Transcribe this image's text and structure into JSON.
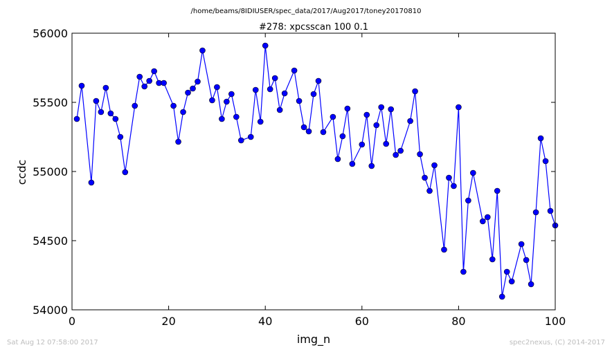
{
  "suptitle": "/home/beams/8IDIUSER/spec_data/2017/Aug2017/toney20170810",
  "footer_left": "Sat Aug 12 07:58:00 2017",
  "footer_right": "spec2nexus, (C) 2014-2017",
  "chart_data": {
    "type": "line",
    "title": "#278: xpcsscan 100 0.1",
    "xlabel": "img_n",
    "ylabel": "ccdc",
    "xlim": [
      0,
      100
    ],
    "ylim": [
      54000,
      56000
    ],
    "xticks": [
      0,
      20,
      40,
      60,
      80,
      100
    ],
    "yticks": [
      54000,
      54500,
      55000,
      55500,
      56000
    ],
    "grid": false,
    "line_color": "#0000ff",
    "marker_color": "#0000ff",
    "marker": "circle",
    "series": [
      {
        "x": [
          1,
          2,
          4,
          5,
          6,
          7,
          8,
          9,
          10,
          11,
          13,
          14,
          15,
          16,
          17,
          18,
          19,
          21,
          22,
          23,
          24,
          25,
          26,
          27,
          29,
          30,
          31,
          32,
          33,
          34,
          35,
          37,
          38,
          39,
          40,
          41,
          42,
          43,
          44,
          46,
          47,
          48,
          49,
          50,
          51,
          52,
          54,
          55,
          56,
          57,
          58,
          60,
          61,
          62,
          63,
          64,
          65,
          66,
          67,
          68,
          70,
          71,
          72,
          73,
          74,
          75,
          77,
          78,
          79,
          80,
          81,
          82,
          83,
          85,
          86,
          87,
          88,
          89,
          90,
          91,
          93,
          94,
          95,
          96,
          97,
          98,
          99,
          100
        ],
        "y": [
          55380,
          55620,
          54920,
          55510,
          55430,
          55605,
          55420,
          55380,
          55250,
          54995,
          55475,
          55685,
          55615,
          55655,
          55725,
          55640,
          55640,
          55475,
          55215,
          55430,
          55570,
          55600,
          55650,
          55875,
          55515,
          55610,
          55380,
          55505,
          55560,
          55395,
          55225,
          55250,
          55590,
          55360,
          55910,
          55595,
          55675,
          55445,
          55565,
          55730,
          55510,
          55320,
          55290,
          55560,
          55655,
          55285,
          55395,
          55090,
          55255,
          55455,
          55055,
          55195,
          55410,
          55040,
          55335,
          55465,
          55200,
          55450,
          55120,
          55150,
          55365,
          55580,
          55125,
          54955,
          54860,
          55045,
          54435,
          54955,
          54895,
          55465,
          54275,
          54790,
          54990,
          54640,
          54670,
          54365,
          54860,
          54095,
          54275,
          54205,
          54475,
          54360,
          54185,
          54705,
          55240,
          55075,
          54715,
          54610
        ]
      }
    ]
  }
}
